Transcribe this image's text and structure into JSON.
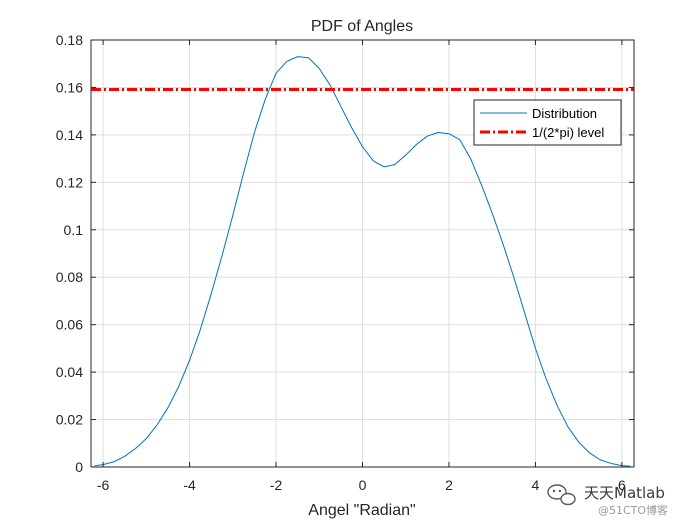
{
  "chart_data": {
    "type": "line",
    "title": "PDF of Angles",
    "xlabel": "Angel \"Radian\"",
    "ylabel": "",
    "xlim": [
      -6.28,
      6.28
    ],
    "ylim": [
      0,
      0.18
    ],
    "xticks": [
      -6,
      -4,
      -2,
      0,
      2,
      4,
      6
    ],
    "xtick_labels": [
      "-6",
      "-4",
      "-2",
      "0",
      "2",
      "4",
      "6"
    ],
    "yticks": [
      0,
      0.02,
      0.04,
      0.06,
      0.08,
      0.1,
      0.12,
      0.14,
      0.16,
      0.18
    ],
    "ytick_labels": [
      "0",
      "0.02",
      "0.04",
      "0.06",
      "0.08",
      "0.1",
      "0.12",
      "0.14",
      "0.16",
      "0.18"
    ],
    "grid": true,
    "legend_position": "top-right",
    "series": [
      {
        "name": "Distribution",
        "color": "#0072BD",
        "style": "solid",
        "x": [
          -6.2,
          -6.0,
          -5.75,
          -5.5,
          -5.25,
          -5.0,
          -4.75,
          -4.5,
          -4.25,
          -4.0,
          -3.75,
          -3.5,
          -3.25,
          -3.0,
          -2.75,
          -2.5,
          -2.25,
          -2.0,
          -1.75,
          -1.5,
          -1.25,
          -1.0,
          -0.75,
          -0.5,
          -0.25,
          0.0,
          0.25,
          0.5,
          0.75,
          1.0,
          1.25,
          1.5,
          1.75,
          2.0,
          2.25,
          2.5,
          2.75,
          3.0,
          3.25,
          3.5,
          3.75,
          4.0,
          4.25,
          4.5,
          4.75,
          5.0,
          5.25,
          5.5,
          5.75,
          6.0,
          6.2
        ],
        "values": [
          0.0005,
          0.001,
          0.0022,
          0.0045,
          0.0078,
          0.012,
          0.0178,
          0.025,
          0.034,
          0.045,
          0.058,
          0.073,
          0.089,
          0.106,
          0.124,
          0.141,
          0.155,
          0.166,
          0.171,
          0.173,
          0.1725,
          0.168,
          0.161,
          0.152,
          0.143,
          0.135,
          0.129,
          0.1265,
          0.1275,
          0.1315,
          0.136,
          0.1395,
          0.141,
          0.1405,
          0.138,
          0.13,
          0.119,
          0.107,
          0.094,
          0.08,
          0.065,
          0.05,
          0.037,
          0.026,
          0.017,
          0.0105,
          0.006,
          0.003,
          0.0015,
          0.0006,
          0.0003
        ]
      },
      {
        "name": "1/(2*pi) level",
        "color": "#FF0000",
        "style": "dash-dot",
        "x": [
          -6.28,
          6.28
        ],
        "values": [
          0.15915,
          0.15915
        ]
      }
    ]
  },
  "watermark": {
    "main": "天天Matlab",
    "sub": "@51CTO博客"
  }
}
